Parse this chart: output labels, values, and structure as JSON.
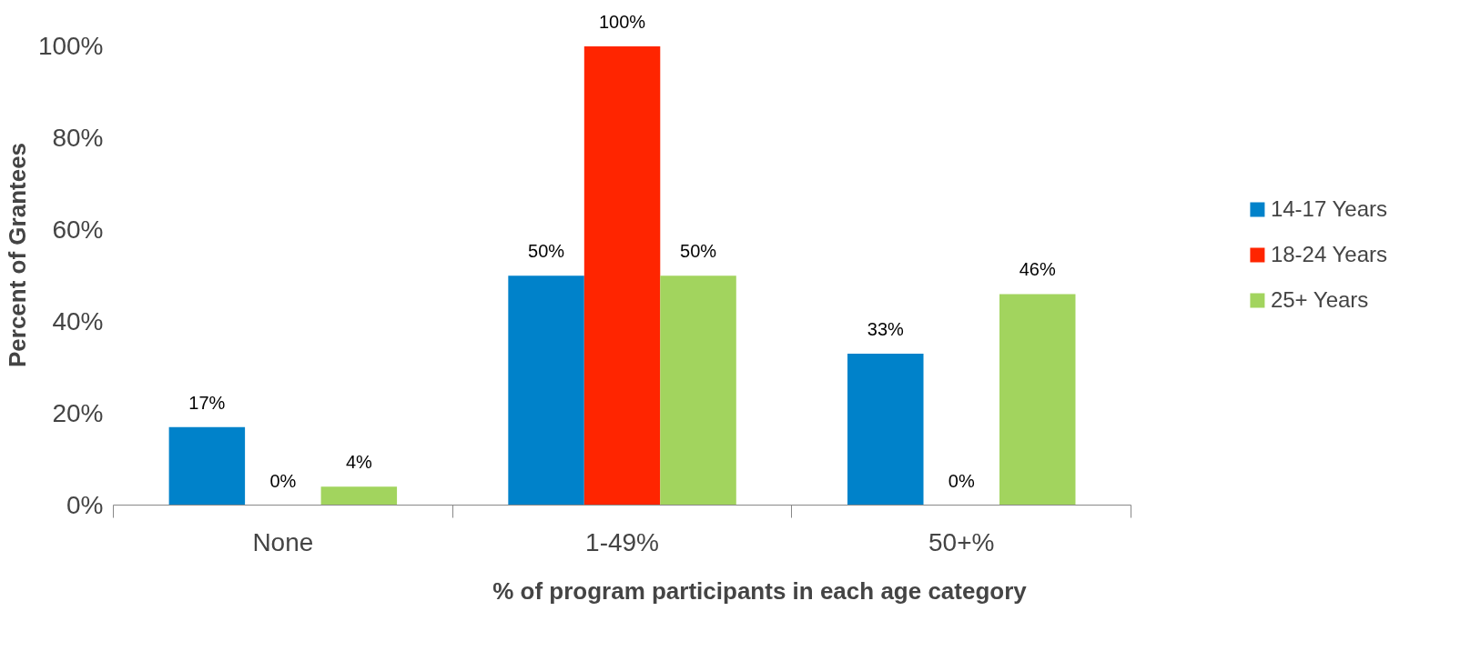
{
  "chart_data": {
    "type": "bar",
    "xlabel": "% of program participants in each age category",
    "ylabel": "Percent of Grantees",
    "categories": [
      "None",
      "1-49%",
      "50+%"
    ],
    "series": [
      {
        "name": "14-17 Years",
        "color": "#0082ca",
        "values": [
          17,
          50,
          33
        ],
        "value_labels": [
          "17%",
          "50%",
          "33%"
        ]
      },
      {
        "name": "18-24 Years",
        "color": "#ff2500",
        "values": [
          0,
          100,
          0
        ],
        "value_labels": [
          "0%",
          "100%",
          "0%"
        ]
      },
      {
        "name": "25+ Years",
        "color": "#a2d45e",
        "values": [
          4,
          50,
          46
        ],
        "value_labels": [
          "4%",
          "50%",
          "46%"
        ]
      }
    ],
    "ylim": [
      0,
      100
    ],
    "yticks": [
      {
        "value": 0,
        "label": "0%"
      },
      {
        "value": 20,
        "label": "20%"
      },
      {
        "value": 40,
        "label": "40%"
      },
      {
        "value": 60,
        "label": "60%"
      },
      {
        "value": 80,
        "label": "80%"
      },
      {
        "value": 100,
        "label": "100%"
      }
    ],
    "grid": false,
    "legend": "right"
  }
}
